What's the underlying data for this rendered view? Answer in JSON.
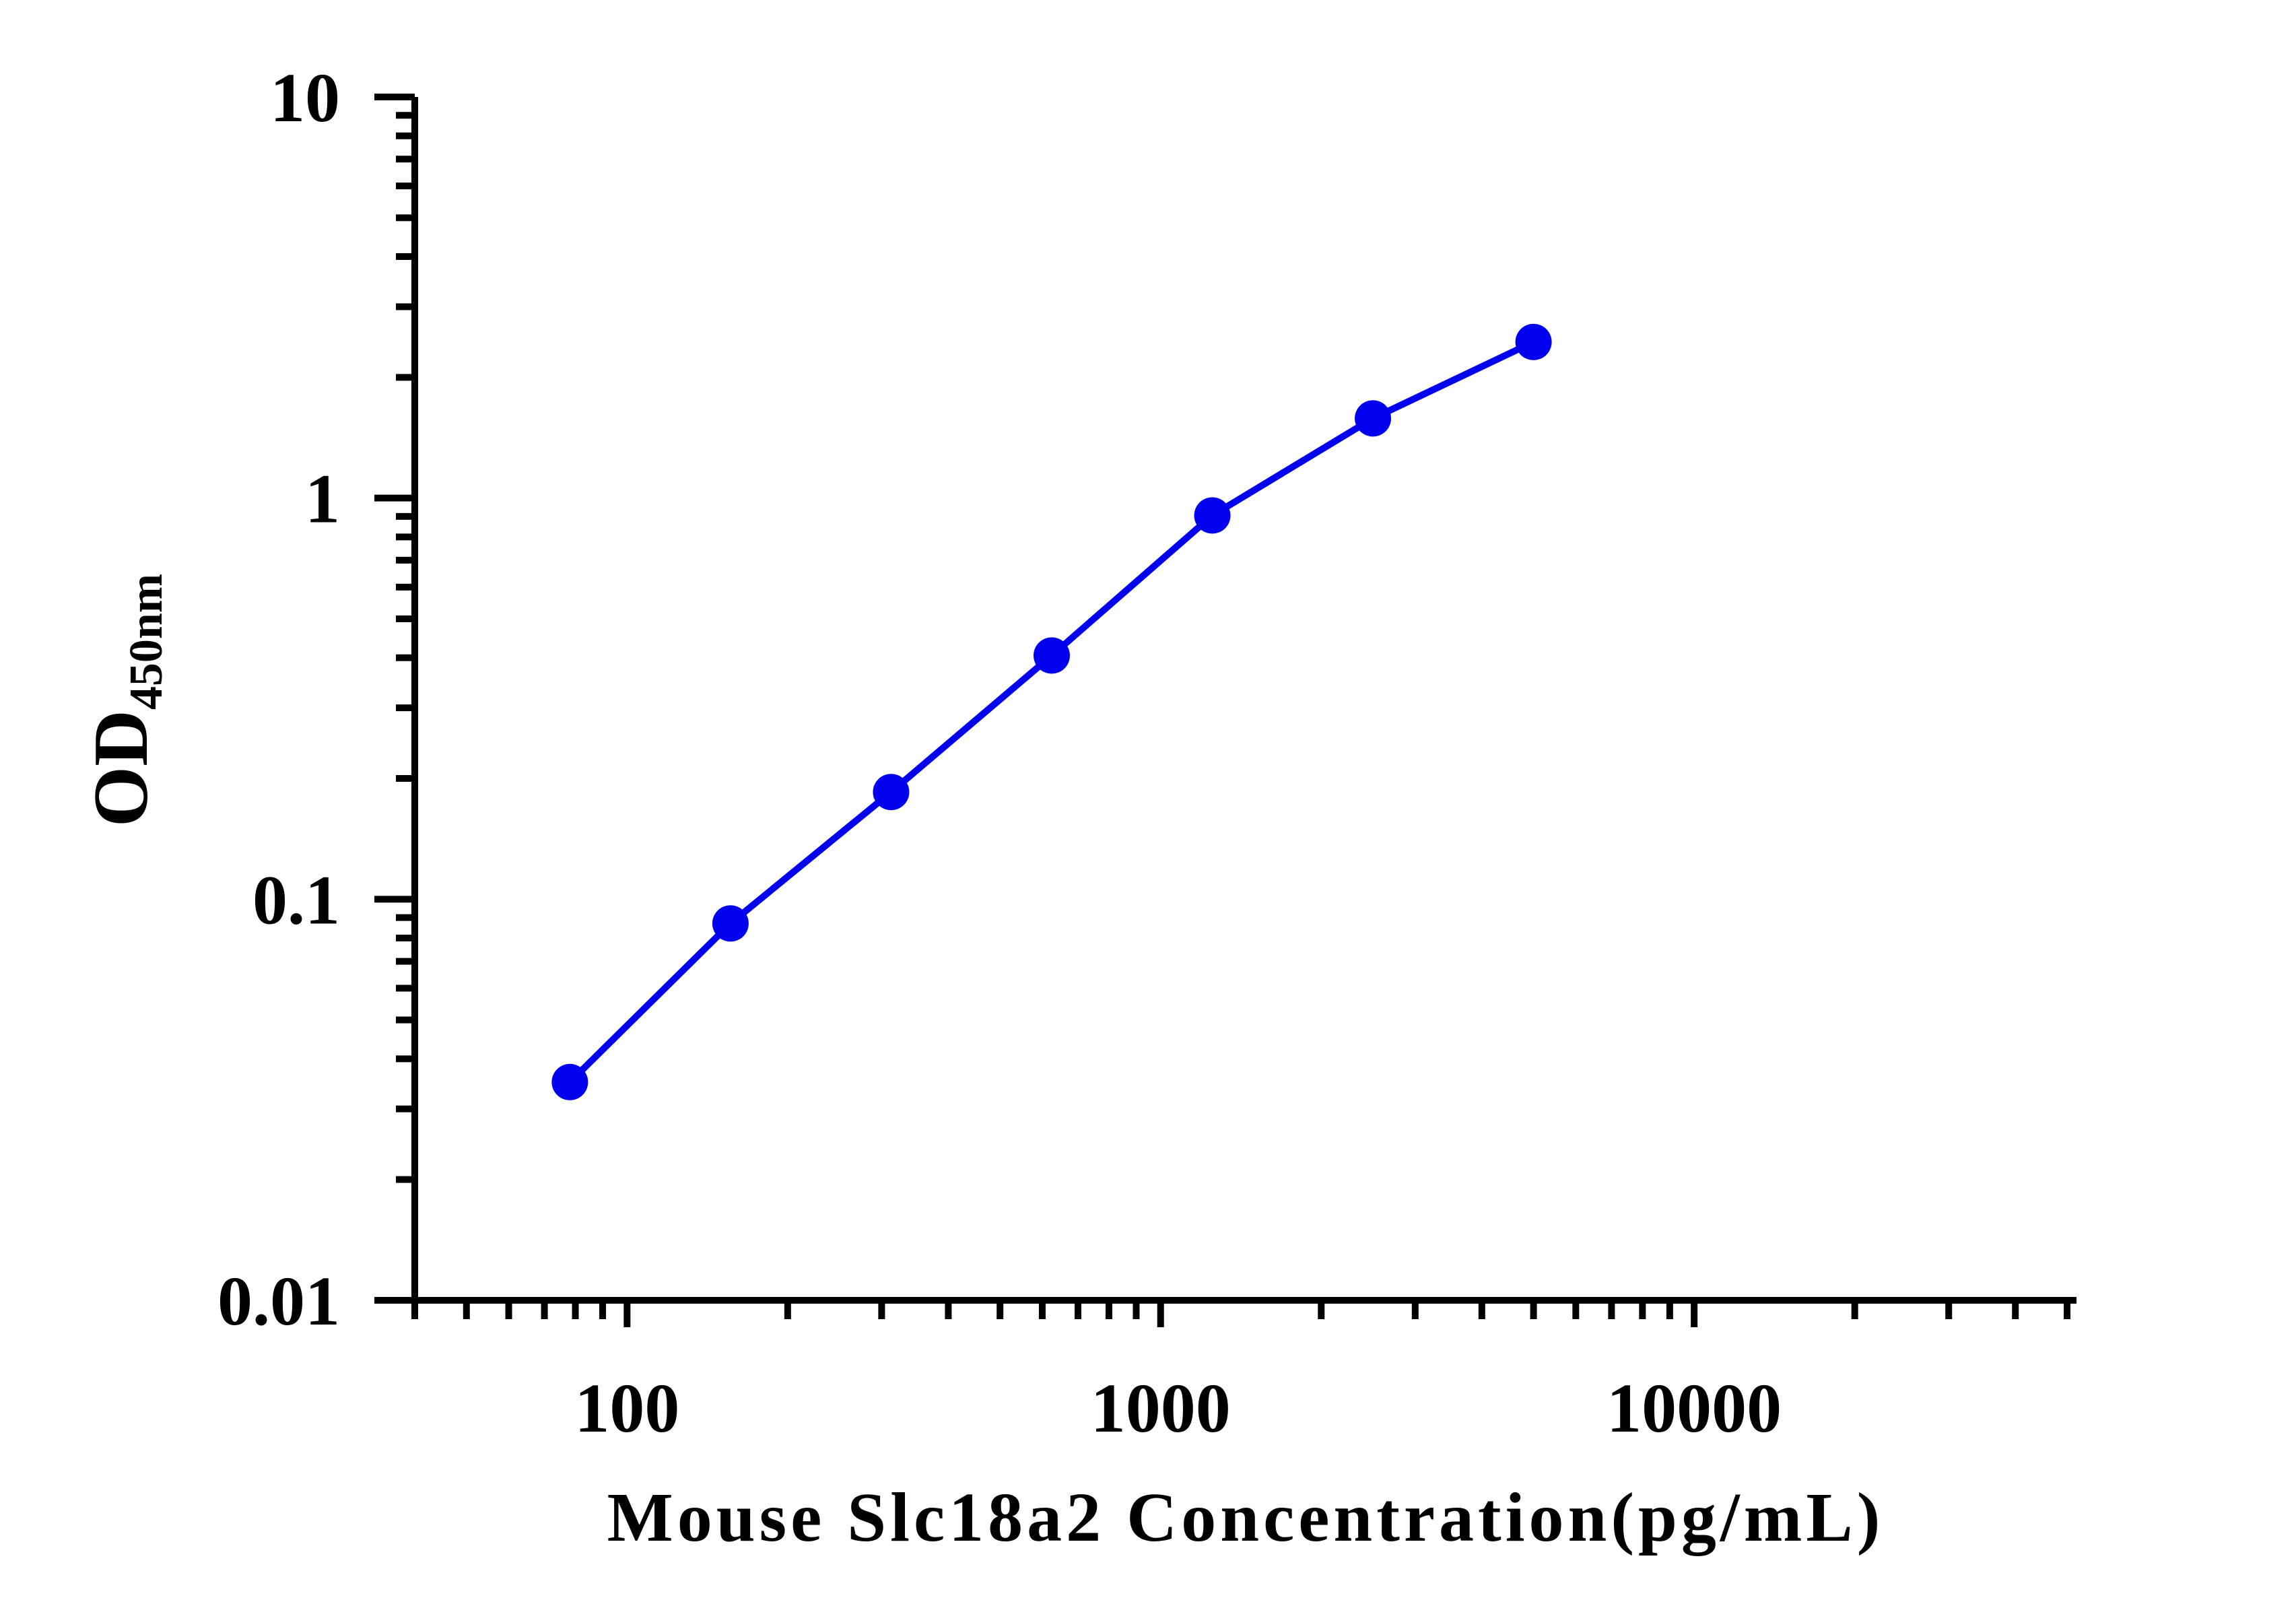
{
  "chart_data": {
    "type": "line",
    "xscale": "log",
    "yscale": "log",
    "xlim": [
      40,
      50000
    ],
    "ylim": [
      0.01,
      10
    ],
    "xlabel": "Mouse Slc18a2 Concentration(pg/mL)",
    "ylabel": {
      "main": "OD",
      "subscript": "450nm"
    },
    "x_ticks": [
      {
        "value": 100,
        "label": "100"
      },
      {
        "value": 1000,
        "label": "1000"
      },
      {
        "value": 10000,
        "label": "10000"
      }
    ],
    "y_ticks": [
      {
        "value": 0.01,
        "label": "0.01"
      },
      {
        "value": 0.1,
        "label": "0.1"
      },
      {
        "value": 1,
        "label": "1"
      },
      {
        "value": 10,
        "label": "10"
      }
    ],
    "series": [
      {
        "color": "#0000ee",
        "x": [
          78.125,
          156.25,
          312.5,
          625,
          1250,
          2500,
          5000
        ],
        "y": [
          0.035,
          0.087,
          0.185,
          0.405,
          0.905,
          1.58,
          2.45
        ]
      }
    ],
    "grid": false,
    "legend": "none"
  }
}
